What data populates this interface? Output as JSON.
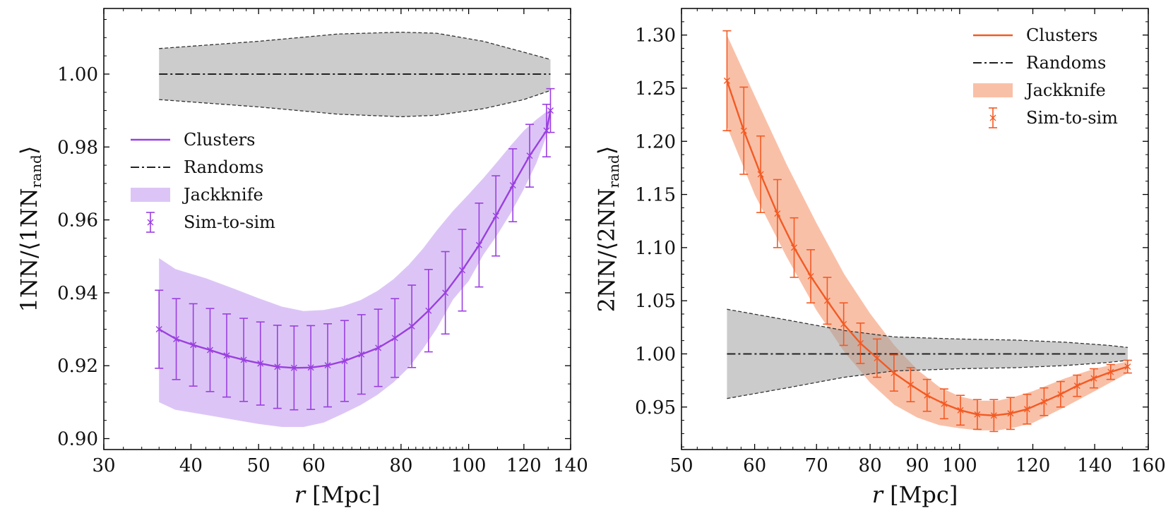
{
  "chart_data": [
    {
      "type": "line",
      "panel": "left",
      "xscale": "log",
      "xlabel": {
        "italic": "r",
        "unit": "Mpc"
      },
      "ylabel": {
        "pre": "1NN/⟨1NN",
        "sub": "rand",
        "post": "⟩"
      },
      "xlim": [
        30,
        140
      ],
      "ylim": [
        0.897,
        1.018
      ],
      "xticks": [
        30,
        40,
        50,
        60,
        80,
        100,
        120,
        140
      ],
      "xtick_labels": [
        "30",
        "40",
        "50",
        "60",
        "80",
        "100",
        "120",
        "140"
      ],
      "yticks": [
        0.9,
        0.92,
        0.94,
        0.96,
        0.98,
        1.0
      ],
      "ytick_labels": [
        "0.90",
        "0.92",
        "0.94",
        "0.96",
        "0.98",
        "1.00"
      ],
      "color": "#9b3fe0",
      "band_color": "#dcc5f6",
      "randoms": {
        "x": [
          36.0,
          80.0,
          131.0
        ],
        "y": [
          1.0,
          1.0,
          1.0
        ],
        "band_x": [
          36.0,
          50.0,
          65.0,
          80.0,
          90.0,
          105.0,
          120.0,
          131.0
        ],
        "band_upper": [
          1.007,
          1.009,
          1.011,
          1.0115,
          1.0112,
          1.009,
          1.006,
          1.004
        ],
        "band_lower": [
          0.993,
          0.991,
          0.989,
          0.9883,
          0.9887,
          0.9905,
          0.993,
          0.9955
        ]
      },
      "clusters": {
        "x": [
          36.0,
          38.1,
          40.3,
          42.6,
          45.0,
          47.6,
          50.3,
          53.2,
          56.2,
          59.4,
          62.8,
          66.4,
          70.2,
          74.2,
          78.4,
          82.9,
          87.6,
          92.6,
          97.9,
          103.5,
          109.4,
          115.7,
          122.3,
          129.3
        ],
        "y": [
          0.93,
          0.9273,
          0.9257,
          0.9243,
          0.9228,
          0.9216,
          0.9206,
          0.9197,
          0.9194,
          0.9195,
          0.9201,
          0.9213,
          0.9231,
          0.9249,
          0.9276,
          0.9308,
          0.9351,
          0.94,
          0.9462,
          0.9531,
          0.9611,
          0.9695,
          0.9776,
          0.9845
        ],
        "err": [
          0.0107,
          0.0111,
          0.0113,
          0.0114,
          0.0114,
          0.0114,
          0.0114,
          0.0114,
          0.0115,
          0.0115,
          0.0114,
          0.0111,
          0.0109,
          0.0106,
          0.0108,
          0.0113,
          0.0113,
          0.0113,
          0.0112,
          0.0115,
          0.011,
          0.01,
          0.0086,
          0.0072
        ],
        "final_point": {
          "x": 131.0,
          "y": 0.99,
          "err": 0.006
        },
        "band_x": [
          36,
          38,
          42,
          46,
          50,
          54,
          58,
          62,
          66,
          70,
          74,
          78,
          82,
          86,
          90,
          95,
          100,
          105,
          110,
          115,
          120,
          125,
          131
        ],
        "band_upper": [
          0.9495,
          0.9465,
          0.944,
          0.9412,
          0.9385,
          0.9362,
          0.935,
          0.9353,
          0.9363,
          0.938,
          0.9405,
          0.9437,
          0.9476,
          0.9521,
          0.9571,
          0.9625,
          0.967,
          0.9715,
          0.976,
          0.9805,
          0.9845,
          0.9875,
          0.9905
        ],
        "band_lower": [
          0.91,
          0.9079,
          0.9065,
          0.9052,
          0.904,
          0.9032,
          0.9032,
          0.9044,
          0.9068,
          0.9092,
          0.912,
          0.9154,
          0.9194,
          0.9246,
          0.9302,
          0.9382,
          0.9432,
          0.9505,
          0.956,
          0.962,
          0.9685,
          0.9755,
          0.986
        ]
      },
      "legend": {
        "position": "center-left",
        "entries": [
          "Clusters",
          "Randoms",
          "Jackknife",
          "Sim-to-sim"
        ]
      }
    },
    {
      "type": "line",
      "panel": "right",
      "xscale": "log",
      "xlabel": {
        "italic": "r",
        "unit": "Mpc"
      },
      "ylabel": {
        "pre": "2NN/⟨2NN",
        "sub": "rand",
        "post": "⟩"
      },
      "xlim": [
        50,
        160
      ],
      "ylim": [
        0.91,
        1.325
      ],
      "xticks": [
        50,
        60,
        70,
        80,
        90,
        100,
        120,
        140,
        160
      ],
      "xtick_labels": [
        "50",
        "60",
        "70",
        "80",
        "90",
        "100",
        "120",
        "140",
        "160"
      ],
      "yticks": [
        0.95,
        1.0,
        1.05,
        1.1,
        1.15,
        1.2,
        1.25,
        1.3
      ],
      "ytick_labels": [
        "0.95",
        "1.00",
        "1.05",
        "1.10",
        "1.15",
        "1.20",
        "1.25",
        "1.30"
      ],
      "color": "#f35a23",
      "band_color": "#f9c0a8",
      "randoms": {
        "x": [
          56.0,
          100.0,
          152.0
        ],
        "y": [
          1.0,
          1.0,
          1.0
        ],
        "band_x": [
          56,
          65,
          75,
          85,
          100,
          115,
          130,
          145,
          152
        ],
        "band_upper": [
          1.042,
          1.032,
          1.022,
          1.016,
          1.014,
          1.013,
          1.011,
          1.008,
          1.006
        ],
        "band_lower": [
          0.958,
          0.968,
          0.978,
          0.984,
          0.986,
          0.987,
          0.989,
          0.992,
          0.994
        ]
      },
      "clusters": {
        "x": [
          56.0,
          58.4,
          60.9,
          63.5,
          66.2,
          69.0,
          71.9,
          74.9,
          78.1,
          81.4,
          84.9,
          88.5,
          92.2,
          96.2,
          100.2,
          104.5,
          108.9,
          113.5,
          118.3,
          123.4,
          128.6,
          134.0,
          139.7,
          145.7,
          152.0
        ],
        "y": [
          1.257,
          1.21,
          1.169,
          1.132,
          1.1,
          1.073,
          1.05,
          1.028,
          1.01,
          0.996,
          0.982,
          0.971,
          0.961,
          0.953,
          0.947,
          0.943,
          0.942,
          0.944,
          0.948,
          0.955,
          0.962,
          0.97,
          0.977,
          0.983,
          0.988
        ],
        "err": [
          0.047,
          0.041,
          0.036,
          0.032,
          0.028,
          0.025,
          0.022,
          0.02,
          0.019,
          0.018,
          0.017,
          0.016,
          0.015,
          0.014,
          0.014,
          0.014,
          0.015,
          0.015,
          0.014,
          0.013,
          0.012,
          0.01,
          0.009,
          0.007,
          0.006
        ],
        "band_x": [
          56,
          60,
          65,
          70,
          75,
          80,
          85,
          90,
          95,
          100,
          105,
          110,
          115,
          120,
          130,
          140,
          152
        ],
        "band_upper": [
          1.3,
          1.243,
          1.178,
          1.123,
          1.075,
          1.038,
          1.008,
          0.985,
          0.969,
          0.96,
          0.956,
          0.956,
          0.96,
          0.965,
          0.977,
          0.986,
          0.993
        ],
        "band_lower": [
          1.214,
          1.15,
          1.091,
          1.041,
          1.002,
          0.973,
          0.952,
          0.94,
          0.933,
          0.93,
          0.928,
          0.928,
          0.931,
          0.935,
          0.95,
          0.965,
          0.982
        ]
      },
      "legend": {
        "position": "upper-right",
        "entries": [
          "Clusters",
          "Randoms",
          "Jackknife",
          "Sim-to-sim"
        ]
      }
    }
  ]
}
